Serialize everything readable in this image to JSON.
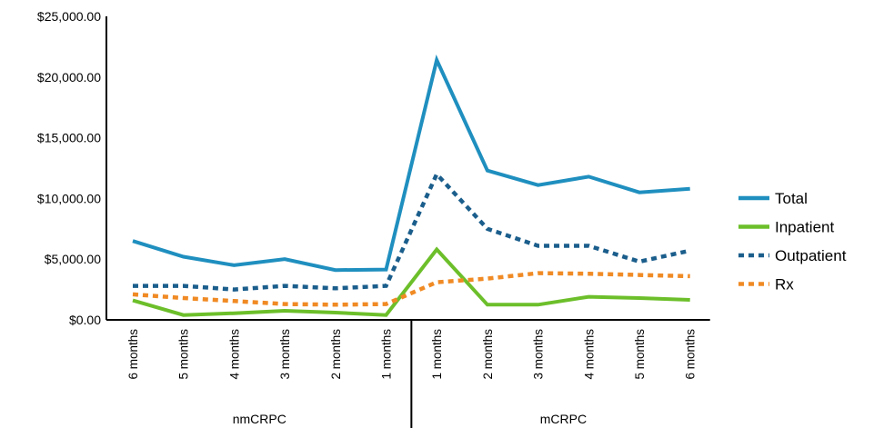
{
  "chart_data": {
    "type": "line",
    "title": "",
    "xlabel": "",
    "ylabel": "",
    "ylim": [
      0,
      25000
    ],
    "y_ticks": [
      0,
      5000,
      10000,
      15000,
      20000,
      25000
    ],
    "y_tick_labels": [
      "$0.00",
      "$5,000.00",
      "$10,000.00",
      "$15,000.00",
      "$20,000.00",
      "$25,000.00"
    ],
    "categories": [
      "6 months",
      "5 months",
      "4 months",
      "3 months",
      "2 months",
      "1 months",
      "1 months",
      "2 months",
      "3 months",
      "4 months",
      "5 months",
      "6 months"
    ],
    "groups": [
      {
        "label": "nmCRPC",
        "start": 0,
        "end": 5
      },
      {
        "label": "mCRPC",
        "start": 6,
        "end": 11
      }
    ],
    "grid": false,
    "legend_position": "right",
    "series": [
      {
        "name": "Total",
        "color": "#1f8fbf",
        "style": "solid",
        "values": [
          6500,
          5200,
          4500,
          5000,
          4100,
          4150,
          21400,
          12300,
          11100,
          11800,
          10500,
          10800
        ]
      },
      {
        "name": "Inpatient",
        "color": "#6cbf2a",
        "style": "solid",
        "values": [
          1600,
          400,
          550,
          750,
          600,
          400,
          5800,
          1250,
          1250,
          1900,
          1800,
          1650
        ]
      },
      {
        "name": "Outpatient",
        "color": "#1b5e8c",
        "style": "dotted",
        "values": [
          2800,
          2800,
          2500,
          2800,
          2600,
          2800,
          12000,
          7500,
          6100,
          6100,
          4800,
          5700
        ]
      },
      {
        "name": "Rx",
        "color": "#f08a24",
        "style": "dotted",
        "values": [
          2100,
          1800,
          1550,
          1300,
          1250,
          1300,
          3100,
          3400,
          3850,
          3800,
          3700,
          3600
        ]
      }
    ]
  }
}
